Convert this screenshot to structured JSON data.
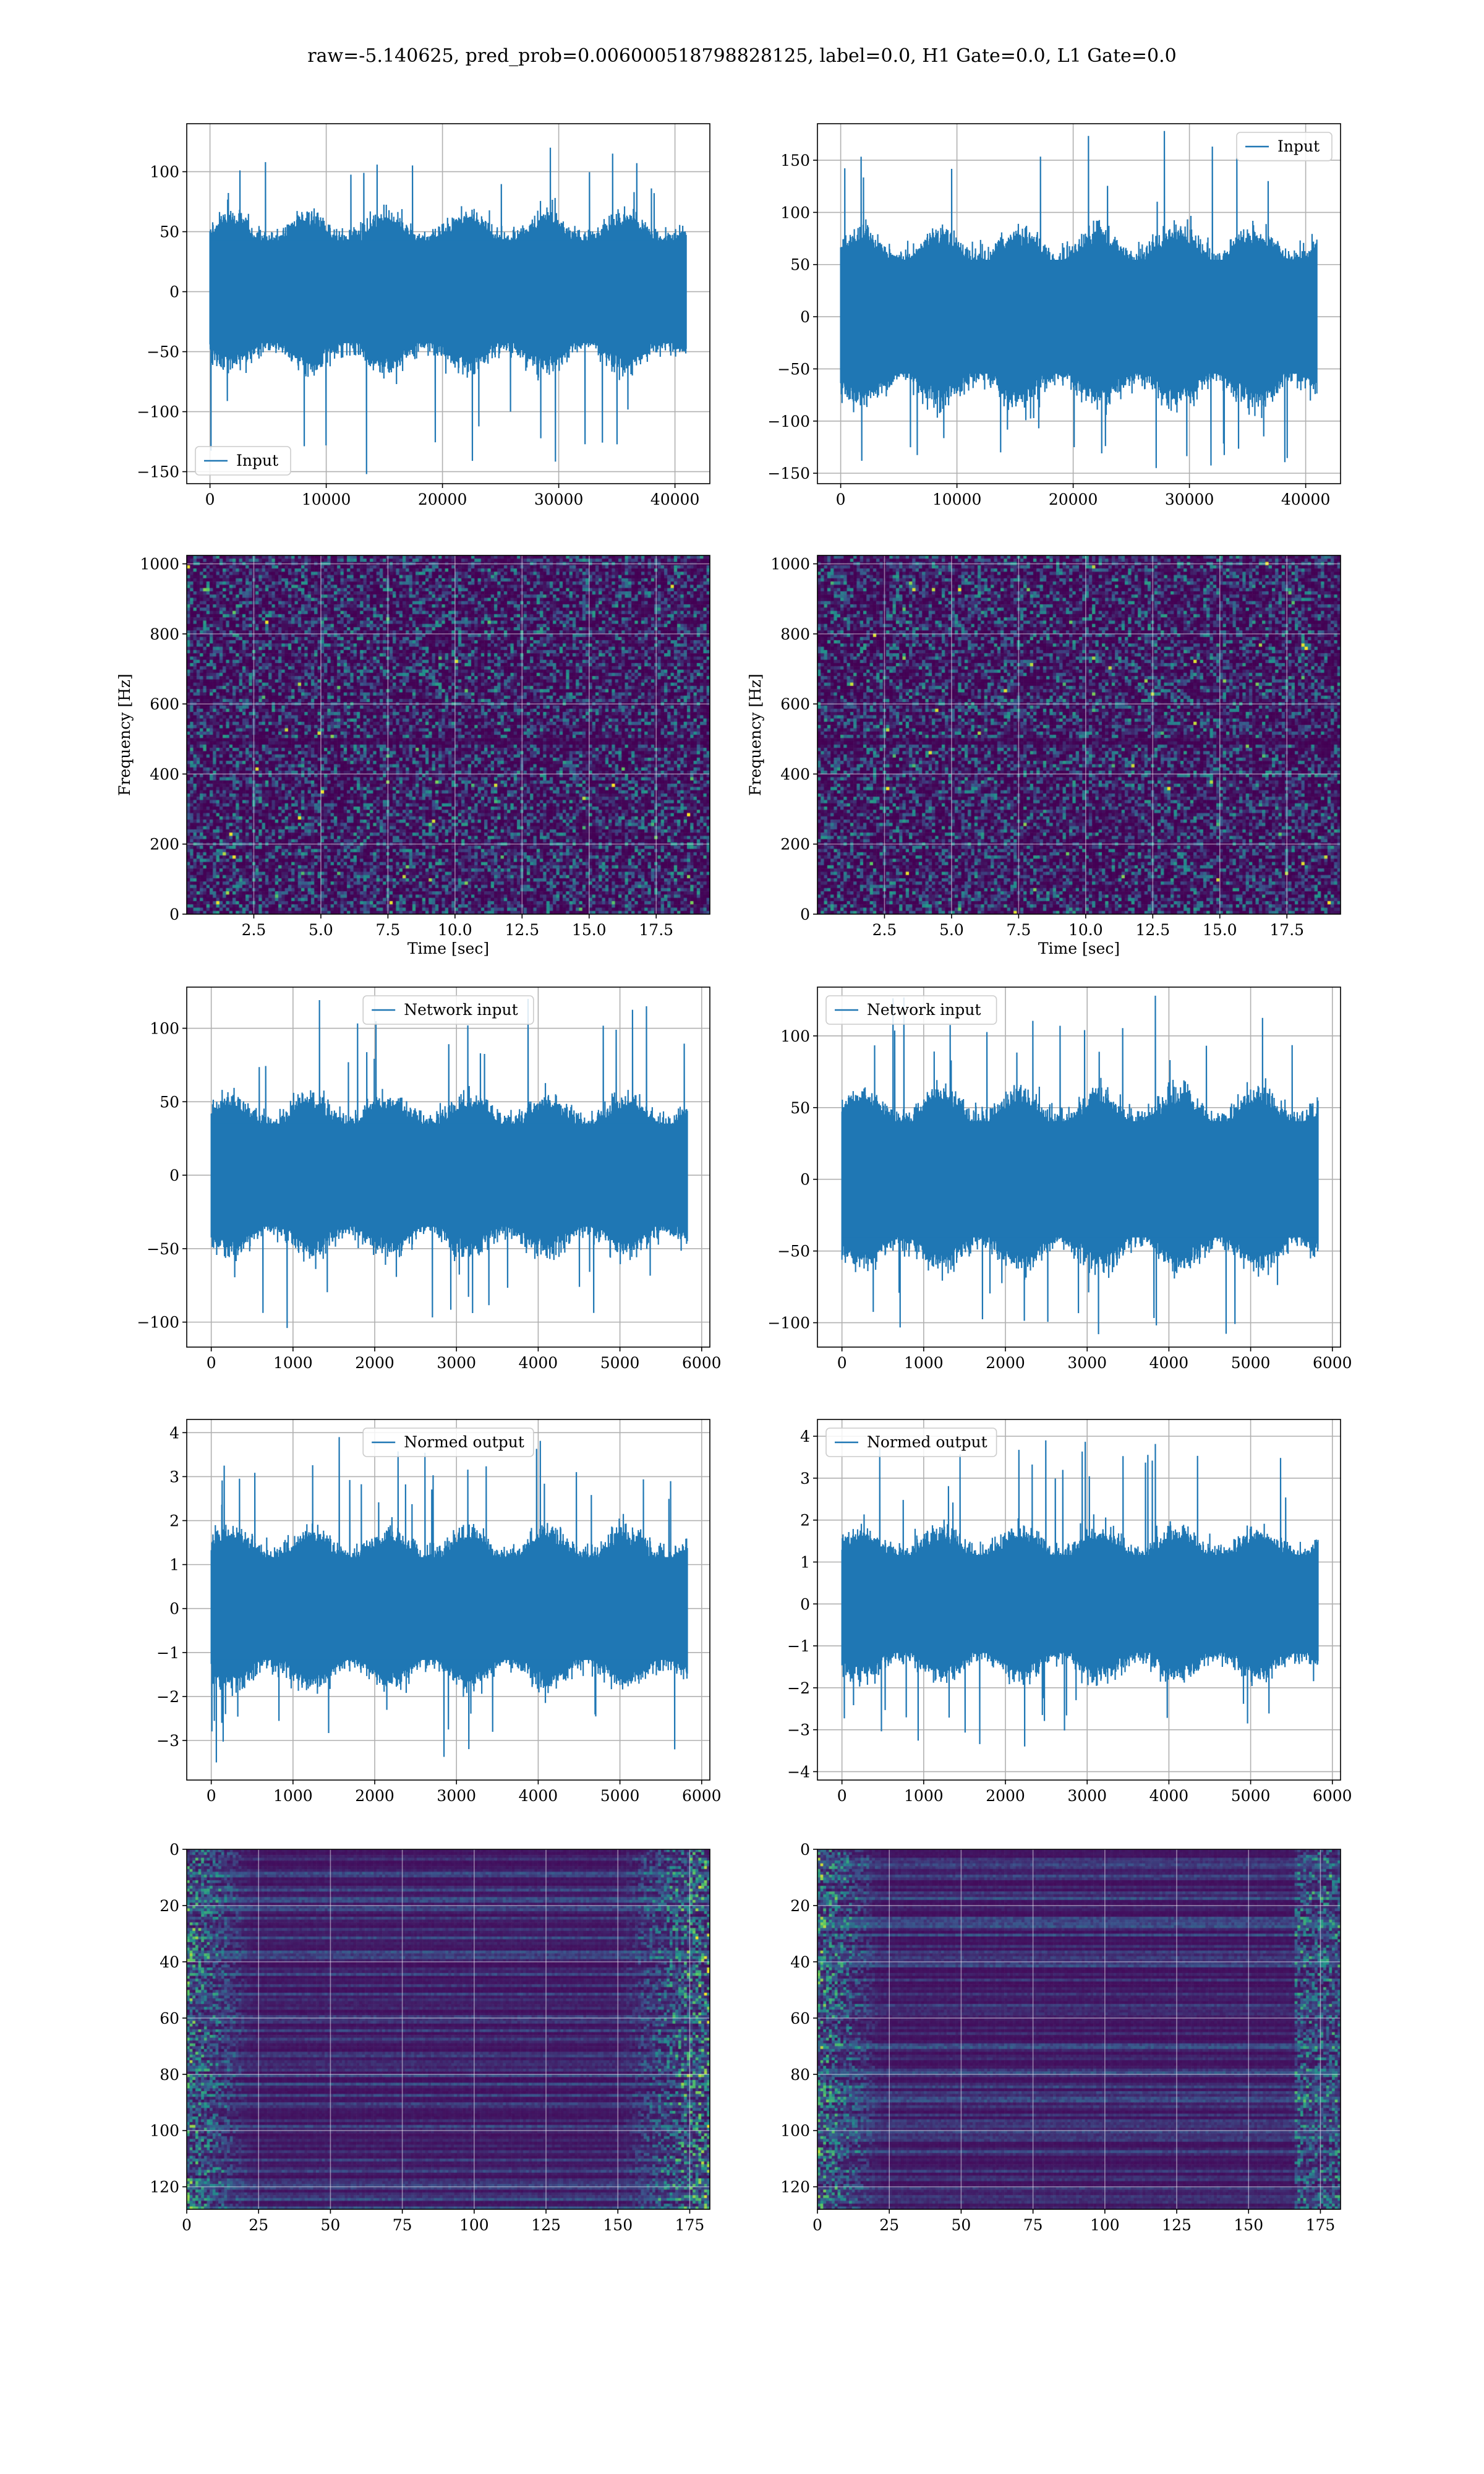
{
  "figure": {
    "title": "raw=-5.140625, pred_prob=0.006000518798828125, label=0.0, H1 Gate=0.0, L1 Gate=0.0"
  },
  "colors": {
    "line": "#1f77b4",
    "grid": "#b0b0b0",
    "viridis_dark": "#440154",
    "viridis_mid": "#21918c",
    "viridis_bright": "#fde725"
  },
  "chart_data": [
    {
      "id": "input-h1",
      "type": "line",
      "row": 0,
      "col": 0,
      "legend": "Input",
      "legend_loc": "lower left",
      "xlim": [
        -2000,
        43000
      ],
      "ylim": [
        -160,
        140
      ],
      "xticks": [
        0,
        10000,
        20000,
        30000,
        40000
      ],
      "yticks": [
        -150,
        -100,
        -50,
        0,
        50,
        100
      ],
      "n": 40960,
      "base_amp": 55,
      "extreme_max": 120,
      "extreme_min": -152,
      "grid": true
    },
    {
      "id": "input-l1",
      "type": "line",
      "row": 0,
      "col": 1,
      "legend": "Input",
      "legend_loc": "upper right",
      "xlim": [
        -2000,
        43000
      ],
      "ylim": [
        -160,
        185
      ],
      "xticks": [
        0,
        10000,
        20000,
        30000,
        40000
      ],
      "yticks": [
        -150,
        -100,
        -50,
        0,
        50,
        100,
        150
      ],
      "n": 40960,
      "base_amp": 70,
      "extreme_max": 178,
      "extreme_min": -145,
      "grid": true
    },
    {
      "id": "spectrogram-h1",
      "type": "heatmap",
      "row": 1,
      "col": 0,
      "xlabel": "Time [sec]",
      "ylabel": "Frequency [Hz]",
      "xlim": [
        0,
        19.5
      ],
      "ylim": [
        0,
        1024
      ],
      "xticks": [
        2.5,
        5.0,
        7.5,
        10.0,
        12.5,
        15.0,
        17.5
      ],
      "yticks": [
        0,
        200,
        400,
        600,
        800,
        1000
      ],
      "grid": true
    },
    {
      "id": "spectrogram-l1",
      "type": "heatmap",
      "row": 1,
      "col": 1,
      "xlabel": "Time [sec]",
      "ylabel": "Frequency [Hz]",
      "xlim": [
        0,
        19.5
      ],
      "ylim": [
        0,
        1024
      ],
      "xticks": [
        2.5,
        5.0,
        7.5,
        10.0,
        12.5,
        15.0,
        17.5
      ],
      "yticks": [
        0,
        200,
        400,
        600,
        800,
        1000
      ],
      "grid": true
    },
    {
      "id": "network-input-h1",
      "type": "line",
      "row": 2,
      "col": 0,
      "legend": "Network input",
      "legend_loc": "upper center",
      "xlim": [
        -300,
        6100
      ],
      "ylim": [
        -117,
        128
      ],
      "xticks": [
        0,
        1000,
        2000,
        3000,
        4000,
        5000,
        6000
      ],
      "yticks": [
        -100,
        -50,
        0,
        50,
        100
      ],
      "n": 5824,
      "base_amp": 45,
      "extreme_max": 120,
      "extreme_min": -104,
      "grid": true
    },
    {
      "id": "network-input-l1",
      "type": "line",
      "row": 2,
      "col": 1,
      "legend": "Network input",
      "legend_loc": "upper left",
      "xlim": [
        -300,
        6100
      ],
      "ylim": [
        -117,
        134
      ],
      "xticks": [
        0,
        1000,
        2000,
        3000,
        4000,
        5000,
        6000
      ],
      "yticks": [
        -100,
        -50,
        0,
        50,
        100
      ],
      "n": 5824,
      "base_amp": 52,
      "extreme_max": 128,
      "extreme_min": -108,
      "grid": true
    },
    {
      "id": "normed-output-h1",
      "type": "line",
      "row": 3,
      "col": 0,
      "legend": "Normed output",
      "legend_loc": "upper center",
      "xlim": [
        -300,
        6100
      ],
      "ylim": [
        -3.9,
        4.3
      ],
      "xticks": [
        0,
        1000,
        2000,
        3000,
        4000,
        5000,
        6000
      ],
      "yticks": [
        -3,
        -2,
        -1,
        0,
        1,
        2,
        3,
        4
      ],
      "n": 5824,
      "base_amp": 1.5,
      "extreme_max": 3.9,
      "extreme_min": -3.5,
      "grid": true
    },
    {
      "id": "normed-output-l1",
      "type": "line",
      "row": 3,
      "col": 1,
      "legend": "Normed output",
      "legend_loc": "upper left",
      "xlim": [
        -300,
        6100
      ],
      "ylim": [
        -4.2,
        4.4
      ],
      "xticks": [
        0,
        1000,
        2000,
        3000,
        4000,
        5000,
        6000
      ],
      "yticks": [
        -4,
        -3,
        -2,
        -1,
        0,
        1,
        2,
        3,
        4
      ],
      "n": 5824,
      "base_amp": 1.5,
      "extreme_max": 3.9,
      "extreme_min": -3.4,
      "grid": true
    },
    {
      "id": "feature-map-h1",
      "type": "heatmap",
      "row": 4,
      "col": 0,
      "xlim": [
        0,
        182
      ],
      "ylim": [
        128,
        0
      ],
      "xticks": [
        0,
        25,
        50,
        75,
        100,
        125,
        150,
        175
      ],
      "yticks": [
        0,
        20,
        40,
        60,
        80,
        100,
        120
      ],
      "grid": true
    },
    {
      "id": "feature-map-l1",
      "type": "heatmap",
      "row": 4,
      "col": 1,
      "xlim": [
        0,
        182
      ],
      "ylim": [
        128,
        0
      ],
      "xticks": [
        0,
        25,
        50,
        75,
        100,
        125,
        150,
        175
      ],
      "yticks": [
        0,
        20,
        40,
        60,
        80,
        100,
        120
      ],
      "grid": true
    }
  ]
}
